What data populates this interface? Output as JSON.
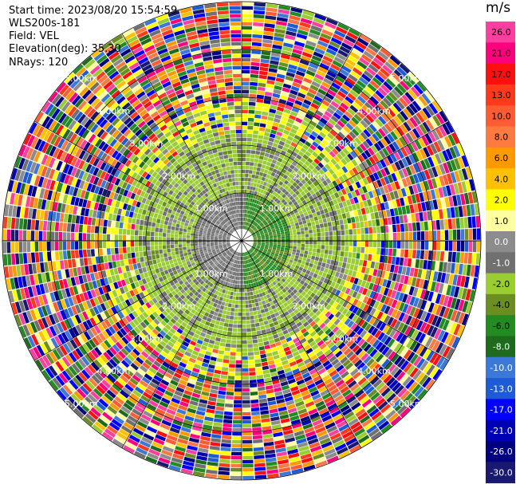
{
  "info": {
    "start_time": "Start time: 2023/08/20 15:54:59",
    "instrument": "WLS200s-181",
    "field": "Field: VEL",
    "elevation": "Elevation(deg): 35.30",
    "nrays": "NRays: 120"
  },
  "chart_data": {
    "type": "heatmap",
    "projection": "polar (PPI)",
    "n_rays": 120,
    "range_rings_km": [
      1,
      2,
      3,
      4,
      5
    ],
    "range_labels": [
      "1.00km",
      "2.00km",
      "3.00km",
      "4.00km",
      "5.00km"
    ],
    "colorbar": {
      "unit": "m/s",
      "ticks": [
        "26.0",
        "21.0",
        "17.0",
        "13.0",
        "10.0",
        "8.0",
        "6.0",
        "4.0",
        "2.0",
        "1.0",
        "0.0",
        "-1.0",
        "-2.0",
        "-4.0",
        "-6.0",
        "-8.0",
        "-10.0",
        "-13.0",
        "-17.0",
        "-21.0",
        "-26.0",
        "-30.0"
      ],
      "colors": [
        "#ff3fa0",
        "#ff007f",
        "#ff1010",
        "#ff3a1a",
        "#ff5c33",
        "#ff7a40",
        "#ff9900",
        "#ffc000",
        "#ffff00",
        "#ffffa0",
        "#8c8c8c",
        "#707070",
        "#9acd32",
        "#6b8e23",
        "#228b22",
        "#1e6b1e",
        "#3c78d8",
        "#1e5bd6",
        "#0000ff",
        "#0000b4",
        "#000080",
        "#191970"
      ]
    },
    "note": "Near-range (<~1.5 km) values mostly between -2 and 0 m/s; outer ranges noisy across full color scale"
  }
}
